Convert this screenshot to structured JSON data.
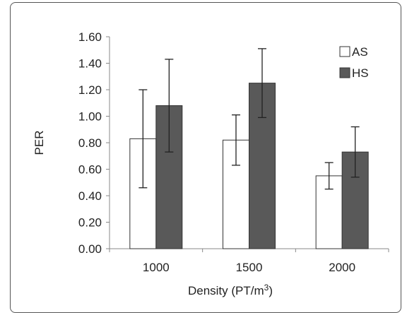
{
  "chart_data": {
    "type": "bar",
    "title": "",
    "xlabel": "Density (PT/m",
    "xlabel_superscript": "3",
    "xlabel_suffix": ")",
    "ylabel": "PER",
    "categories": [
      "1000",
      "1500",
      "2000"
    ],
    "ylim": [
      0,
      1.6
    ],
    "yticks": [
      "0.00",
      "0.20",
      "0.40",
      "0.60",
      "0.80",
      "1.00",
      "1.20",
      "1.40",
      "1.60"
    ],
    "grid": false,
    "legend_position": "top-right",
    "series": [
      {
        "name": "AS",
        "color": "#ffffff",
        "values": [
          0.83,
          0.82,
          0.55
        ],
        "err_low": [
          0.46,
          0.63,
          0.45
        ],
        "err_high": [
          1.2,
          1.01,
          0.65
        ]
      },
      {
        "name": "HS",
        "color": "#595959",
        "values": [
          1.08,
          1.25,
          0.73
        ],
        "err_low": [
          0.73,
          0.99,
          0.54
        ],
        "err_high": [
          1.43,
          1.51,
          0.92
        ]
      }
    ]
  }
}
